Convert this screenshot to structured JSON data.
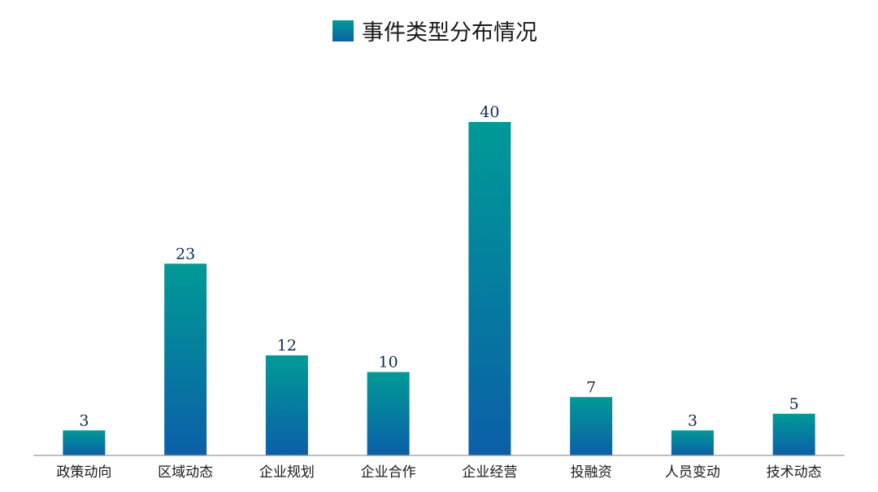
{
  "chart_data": {
    "type": "bar",
    "categories": [
      "政策动向",
      "区域动态",
      "企业规划",
      "企业合作",
      "企业经营",
      "投融资",
      "人员变动",
      "技术动态"
    ],
    "series": [
      {
        "name": "事件类型分布情况",
        "values": [
          3,
          23,
          12,
          10,
          40,
          7,
          3,
          5
        ]
      }
    ],
    "ylim": [
      0,
      40
    ],
    "grid": false,
    "legend_position": "top-center",
    "colors": {
      "bar_top": "#009a96",
      "bar_bottom": "#0b5fa8",
      "axis": "#999999",
      "value_label": "#0d2a5a"
    }
  }
}
